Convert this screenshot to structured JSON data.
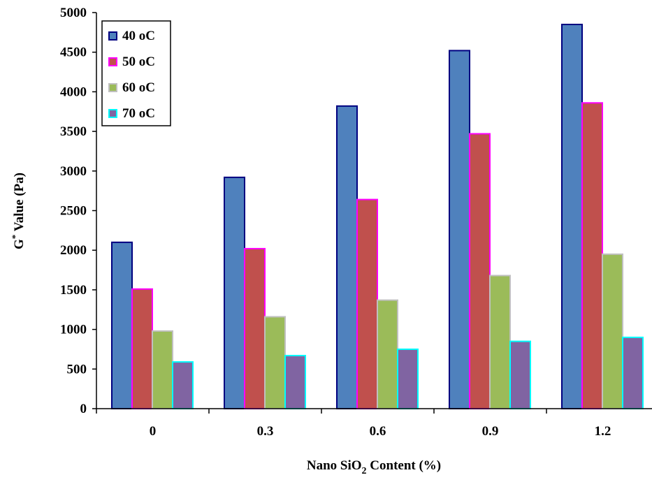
{
  "chart_data": {
    "type": "bar",
    "categories": [
      "0",
      "0.3",
      "0.6",
      "0.9",
      "1.2"
    ],
    "series": [
      {
        "name": "40 oC",
        "values": [
          2100,
          2920,
          3820,
          4520,
          4850
        ],
        "fill": "#4f81bd",
        "stroke": "#000080"
      },
      {
        "name": "50 oC",
        "values": [
          1510,
          2020,
          2640,
          3470,
          3860
        ],
        "fill": "#c0504d",
        "stroke": "#ff00ff"
      },
      {
        "name": "60 oC",
        "values": [
          980,
          1160,
          1370,
          1680,
          1950
        ],
        "fill": "#9bbb59",
        "stroke": "#c0c0c0"
      },
      {
        "name": "70 oC",
        "values": [
          590,
          670,
          750,
          850,
          900
        ],
        "fill": "#8064a2",
        "stroke": "#00ffff"
      }
    ],
    "ylim": [
      0,
      5000
    ],
    "yticks": [
      "0",
      "500",
      "1000",
      "1500",
      "2000",
      "2500",
      "3000",
      "3500",
      "4000",
      "4500",
      "5000"
    ],
    "ylabel": {
      "main": "G",
      "sup": "*",
      "rest": " Value (Pa)"
    },
    "xlabel": {
      "pre": "Nano SiO",
      "sub": "2",
      "post": " Content (%)"
    },
    "legend_position": "top-left",
    "grid": false
  }
}
